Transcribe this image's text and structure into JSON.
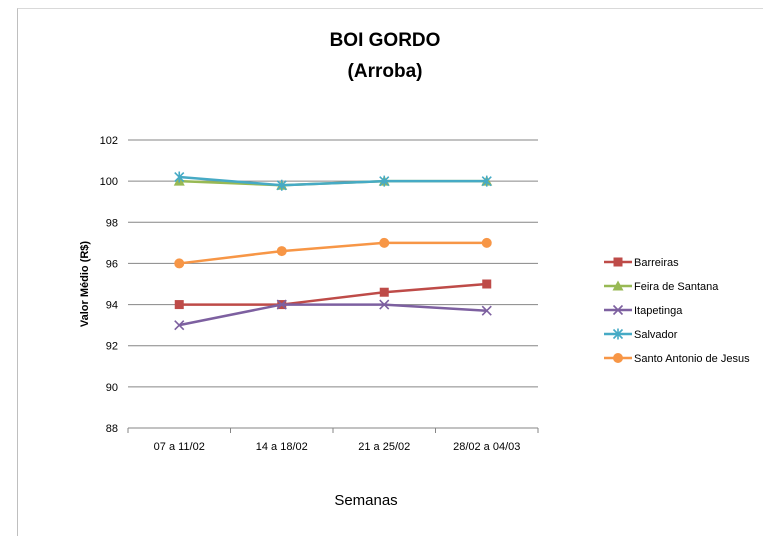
{
  "chart_data": {
    "type": "line",
    "title": "BOI GORDO",
    "subtitle": "(Arroba)",
    "xlabel": "Semanas",
    "ylabel": "Valor Médio (R$)",
    "categories": [
      "07 a 11/02",
      "14 a 18/02",
      "21 a 25/02",
      "28/02 a 04/03"
    ],
    "ylim": [
      88,
      102
    ],
    "yticks": [
      88,
      90,
      92,
      94,
      96,
      98,
      100,
      102
    ],
    "grid": true,
    "legend": "right",
    "series": [
      {
        "name": "Barreiras",
        "values": [
          94,
          94,
          94.6,
          95
        ],
        "color": "#be4b48",
        "marker": "square"
      },
      {
        "name": "Feira de Santana",
        "values": [
          100,
          99.8,
          100,
          100
        ],
        "color": "#98b954",
        "marker": "triangle"
      },
      {
        "name": "Itapetinga",
        "values": [
          93,
          94,
          94,
          93.7
        ],
        "color": "#7d60a0",
        "marker": "x"
      },
      {
        "name": "Salvador",
        "values": [
          100.2,
          99.8,
          100,
          100
        ],
        "color": "#46aac5",
        "marker": "star"
      },
      {
        "name": "Santo Antonio de Jesus",
        "values": [
          96,
          96.6,
          97,
          97
        ],
        "color": "#f79646",
        "marker": "circle"
      }
    ]
  }
}
